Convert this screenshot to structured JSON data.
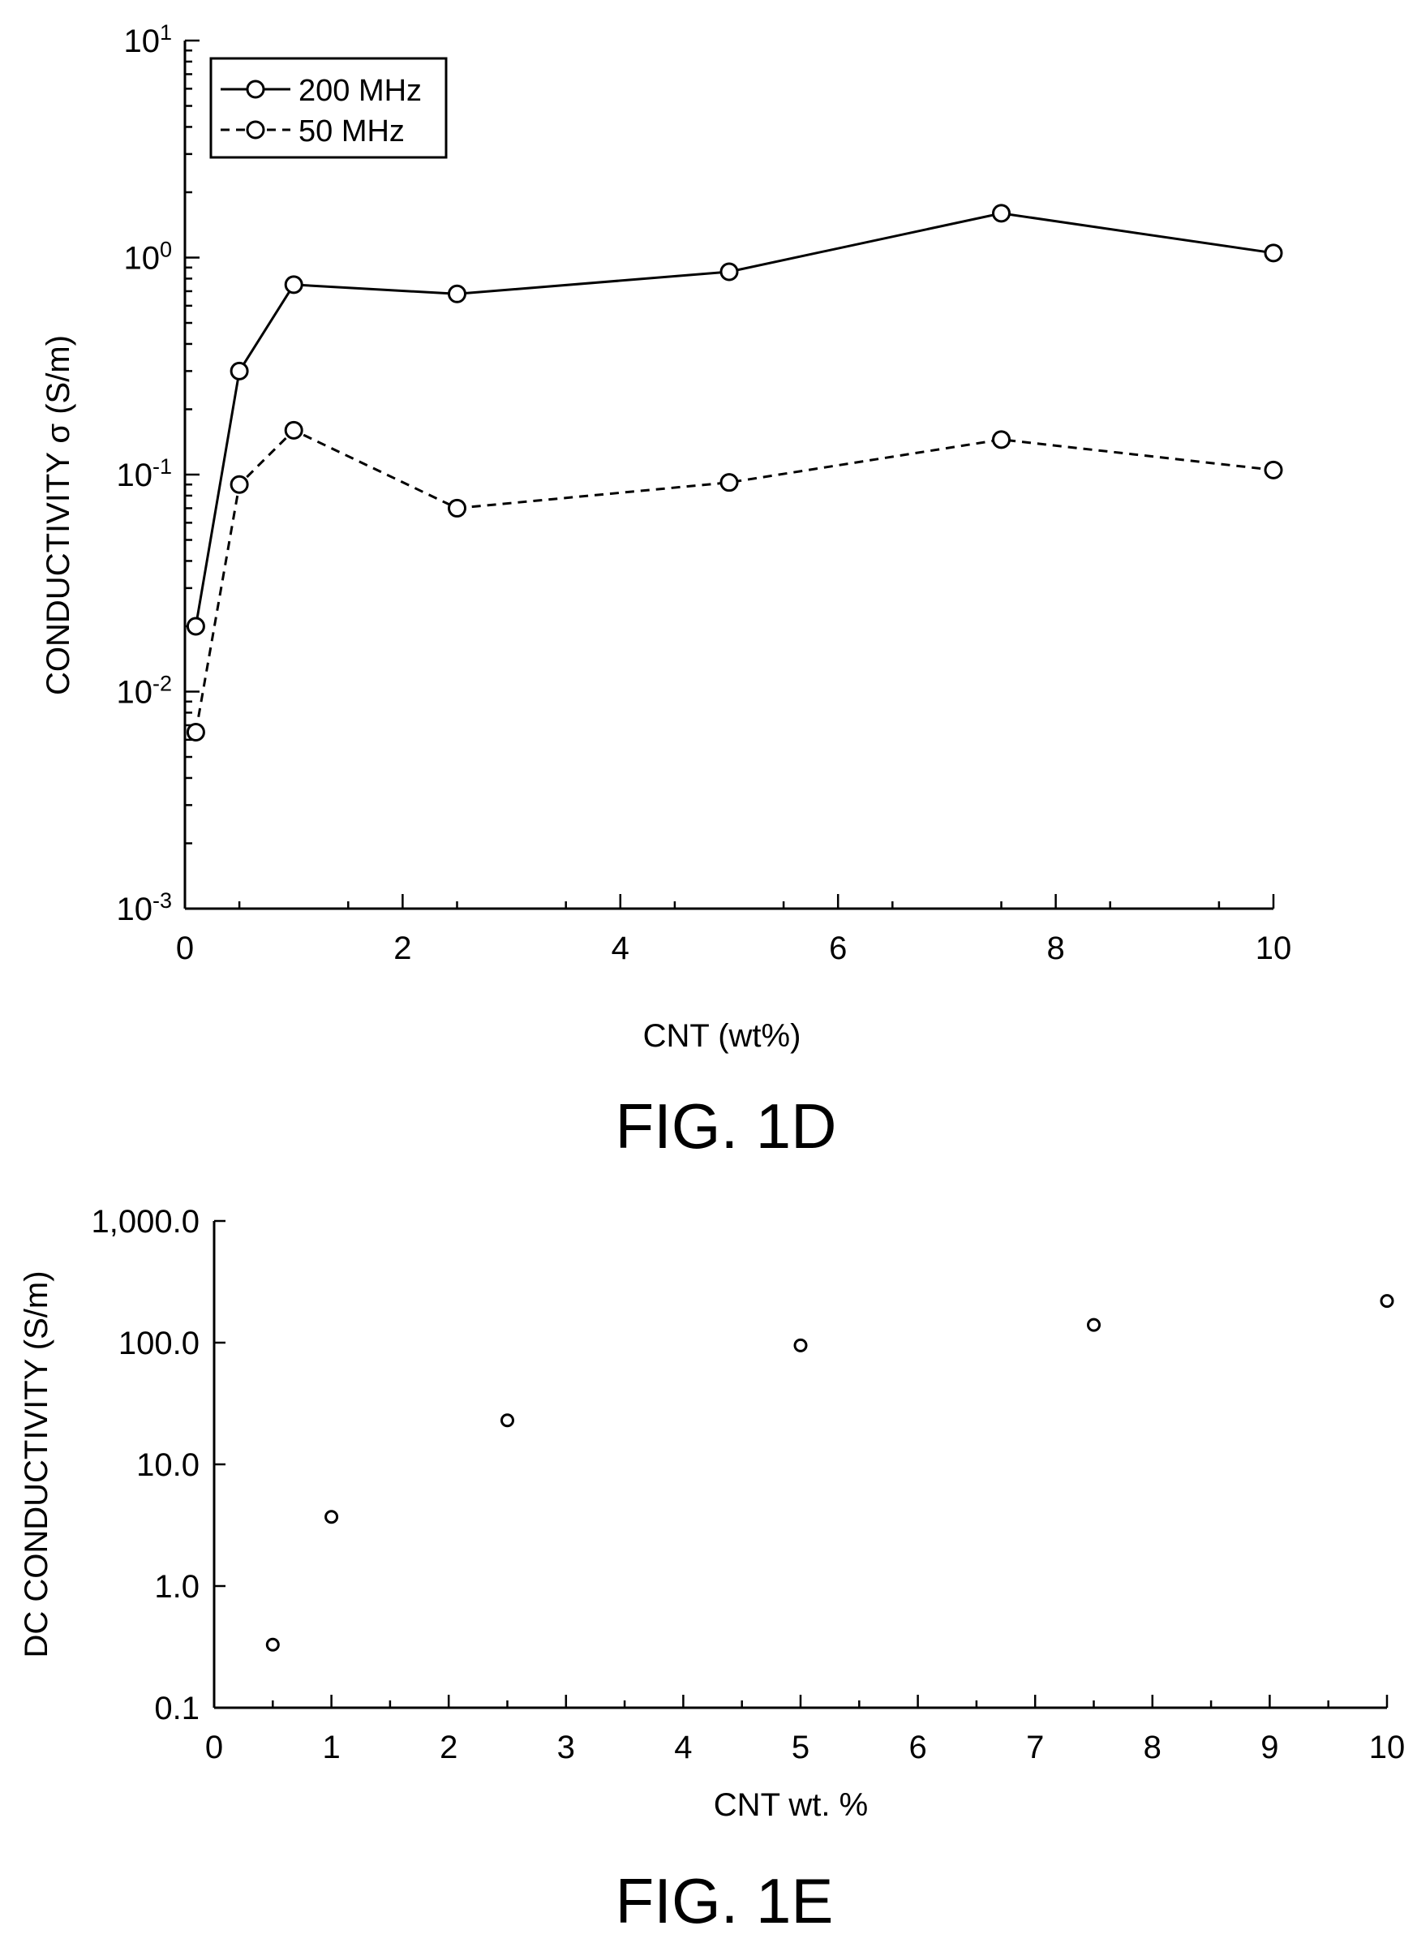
{
  "chart_data": [
    {
      "type": "line",
      "caption": "FIG. 1D",
      "xlabel": "CNT (wt%)",
      "ylabel": "CONDUCTIVITY σ (S/m)",
      "xlim": [
        0,
        10
      ],
      "xticks": [
        0,
        2,
        4,
        6,
        8,
        10
      ],
      "ylim": [
        0.001,
        10
      ],
      "yscale": "log",
      "yticks": [
        {
          "value": 10,
          "base": "10",
          "exp": "1"
        },
        {
          "value": 1,
          "base": "10",
          "exp": "0"
        },
        {
          "value": 0.1,
          "base": "10",
          "exp": "-1"
        },
        {
          "value": 0.01,
          "base": "10",
          "exp": "-2"
        },
        {
          "value": 0.001,
          "base": "10",
          "exp": "-3"
        }
      ],
      "grid": false,
      "legend": "top-left",
      "x": [
        0.1,
        0.5,
        1,
        2.5,
        5,
        7.5,
        10
      ],
      "series": [
        {
          "name": "200 MHz",
          "style": "solid",
          "values": [
            0.02,
            0.3,
            0.75,
            0.68,
            0.86,
            1.6,
            1.05
          ]
        },
        {
          "name": "50 MHz",
          "style": "dashed",
          "values": [
            0.0065,
            0.09,
            0.16,
            0.07,
            0.092,
            0.145,
            0.105
          ]
        }
      ]
    },
    {
      "type": "scatter",
      "caption": "FIG. 1E",
      "xlabel": "CNT wt. %",
      "ylabel": "DC CONDUCTIVITY (S/m)",
      "xlim": [
        0,
        10
      ],
      "xticks": [
        0,
        1,
        2,
        3,
        4,
        5,
        6,
        7,
        8,
        9,
        10
      ],
      "ylim": [
        0.1,
        1000
      ],
      "yscale": "log",
      "yticks": [
        {
          "value": 1000,
          "label": "1,000.0"
        },
        {
          "value": 100,
          "label": "100.0"
        },
        {
          "value": 10,
          "label": "10.0"
        },
        {
          "value": 1,
          "label": "1.0"
        },
        {
          "value": 0.1,
          "label": "0.1"
        }
      ],
      "grid": false,
      "x": [
        0.5,
        1,
        2.5,
        5,
        7.5,
        10
      ],
      "series": [
        {
          "values": [
            0.33,
            3.7,
            23,
            95,
            140,
            220
          ]
        }
      ]
    }
  ]
}
